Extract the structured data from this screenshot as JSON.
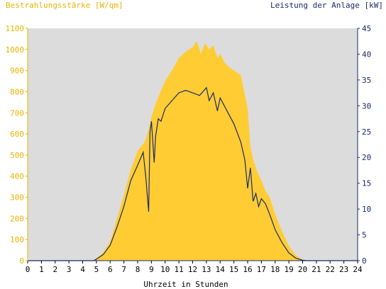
{
  "chart_data": {
    "type": "area",
    "left_axis_title": "Bestrahlungsstärke [W/qm]",
    "right_axis_title": "Leistung der Anlage [kW]",
    "xlabel": "Uhrzeit in Stunden",
    "xlim": [
      0,
      24
    ],
    "x_ticks": [
      "0",
      "1",
      "2",
      "3",
      "4",
      "5",
      "6",
      "7",
      "8",
      "9",
      "10",
      "11",
      "12",
      "13",
      "14",
      "15",
      "16",
      "17",
      "18",
      "19",
      "20",
      "21",
      "22",
      "23",
      "24"
    ],
    "left_ylim": [
      0,
      1100
    ],
    "left_ticks": [
      "0",
      "100",
      "200",
      "300",
      "400",
      "500",
      "600",
      "700",
      "800",
      "900",
      "1000",
      "1100"
    ],
    "right_ylim": [
      0,
      45
    ],
    "right_ticks": [
      "0",
      "5",
      "10",
      "15",
      "20",
      "25",
      "30",
      "35",
      "40",
      "45"
    ],
    "grid": false,
    "colors": {
      "plot_background": "#dcdcdc",
      "irradiance_fill": "#ffcc33",
      "power_line": "#1a2a6c",
      "left_axis_text": "#e8b400",
      "right_axis_text": "#1a2a6c",
      "axis_text": "#000000"
    },
    "series": [
      {
        "axis": "left",
        "style": "filled-area",
        "x": [
          0,
          4.8,
          5.0,
          5.5,
          6.0,
          6.5,
          7.0,
          7.5,
          8.0,
          8.5,
          8.8,
          9.0,
          9.3,
          9.6,
          10.0,
          10.5,
          11.0,
          11.5,
          12.0,
          12.3,
          12.6,
          12.9,
          13.2,
          13.5,
          13.8,
          14.0,
          14.3,
          14.6,
          15.0,
          15.5,
          16.0,
          16.2,
          16.4,
          16.7,
          17.0,
          17.3,
          17.6,
          18.0,
          18.5,
          19.0,
          19.5,
          20.0,
          20.3,
          24
        ],
        "values": [
          0,
          0,
          10,
          40,
          90,
          200,
          310,
          430,
          520,
          560,
          620,
          680,
          740,
          790,
          850,
          900,
          960,
          990,
          1010,
          1040,
          980,
          1030,
          1000,
          1020,
          960,
          980,
          940,
          920,
          900,
          880,
          720,
          540,
          480,
          420,
          380,
          330,
          300,
          220,
          140,
          70,
          25,
          5,
          0,
          0
        ]
      },
      {
        "axis": "right",
        "style": "line",
        "x": [
          0,
          4.8,
          5.0,
          5.5,
          6.0,
          6.5,
          7.0,
          7.5,
          8.0,
          8.4,
          8.6,
          8.8,
          8.9,
          9.0,
          9.2,
          9.3,
          9.5,
          9.7,
          10.0,
          10.5,
          11.0,
          11.5,
          12.0,
          12.5,
          13.0,
          13.2,
          13.5,
          13.8,
          14.0,
          14.3,
          14.6,
          15.0,
          15.5,
          15.8,
          16.0,
          16.2,
          16.4,
          16.6,
          16.8,
          17.0,
          17.3,
          17.6,
          18.0,
          18.5,
          19.0,
          19.5,
          20.0,
          20.3,
          24
        ],
        "values": [
          0,
          0,
          0.3,
          1.2,
          3.0,
          6.5,
          10.5,
          15.5,
          18.5,
          21.0,
          16.0,
          9.5,
          25.0,
          27.0,
          19.0,
          24.0,
          27.5,
          27.0,
          29.5,
          31.0,
          32.5,
          33.0,
          32.5,
          32.0,
          33.5,
          31.0,
          32.5,
          29.0,
          31.5,
          30.0,
          28.5,
          26.5,
          23.0,
          19.5,
          14.0,
          18.0,
          11.5,
          13.0,
          10.5,
          12.0,
          11.0,
          9.0,
          6.0,
          3.5,
          1.5,
          0.5,
          0.1,
          0,
          0
        ]
      }
    ]
  }
}
